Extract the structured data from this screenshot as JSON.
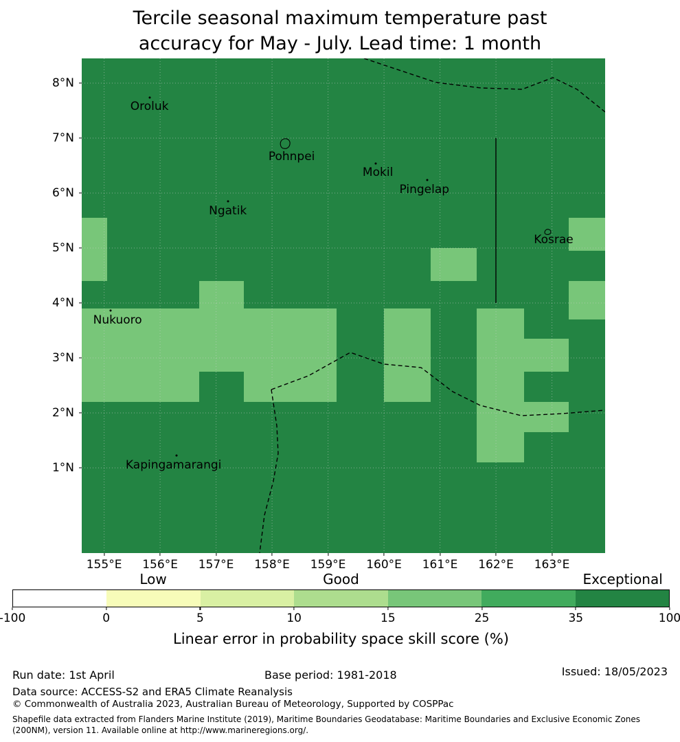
{
  "title": {
    "line1": "Tercile seasonal maximum temperature past",
    "line2": "accuracy for May - July. Lead time: 1 month"
  },
  "chart_data": {
    "type": "heatmap",
    "title": "Tercile seasonal maximum temperature past accuracy for May - July. Lead time: 1 month",
    "value_name": "Linear error in probability space skill score (%)",
    "extent": {
      "lon_min": 154.6,
      "lon_max": 163.95,
      "lat_min": -0.55,
      "lat_max": 8.45
    },
    "x_axis": {
      "ticks": [
        {
          "lon": 155,
          "label": "155°E"
        },
        {
          "lon": 156,
          "label": "156°E"
        },
        {
          "lon": 157,
          "label": "157°E"
        },
        {
          "lon": 158,
          "label": "158°E"
        },
        {
          "lon": 159,
          "label": "159°E"
        },
        {
          "lon": 160,
          "label": "160°E"
        },
        {
          "lon": 161,
          "label": "161°E"
        },
        {
          "lon": 162,
          "label": "162°E"
        },
        {
          "lon": 163,
          "label": "163°E"
        }
      ]
    },
    "y_axis": {
      "ticks": [
        {
          "lat": 8,
          "label": "8°N"
        },
        {
          "lat": 7,
          "label": "7°N"
        },
        {
          "lat": 6,
          "label": "6°N"
        },
        {
          "lat": 5,
          "label": "5°N"
        },
        {
          "lat": 4,
          "label": "4°N"
        },
        {
          "lat": 3,
          "label": "3°N"
        },
        {
          "lat": 2,
          "label": "2°N"
        },
        {
          "lat": 1,
          "label": "1°N"
        }
      ]
    },
    "bins": [
      {
        "range": [
          -100,
          0
        ],
        "color": "#ffffff",
        "category": "Low"
      },
      {
        "range": [
          0,
          5
        ],
        "color": "#f7fcb9",
        "category": "Low"
      },
      {
        "range": [
          5,
          10
        ],
        "color": "#d9f0a3",
        "category": ""
      },
      {
        "range": [
          10,
          15
        ],
        "color": "#addd8e",
        "category": "Good"
      },
      {
        "range": [
          15,
          25
        ],
        "color": "#78c679",
        "category": ""
      },
      {
        "range": [
          25,
          35
        ],
        "color": "#41ab5d",
        "category": ""
      },
      {
        "range": [
          35,
          100
        ],
        "color": "#238443",
        "category": "Exceptional"
      }
    ],
    "background_bin": 6,
    "patches": [
      {
        "lon": [
          154.6,
          155.05
        ],
        "lat": [
          4.4,
          5.55
        ],
        "bin": 4
      },
      {
        "lon": [
          156.7,
          157.5
        ],
        "lat": [
          3.9,
          4.4
        ],
        "bin": 4
      },
      {
        "lon": [
          154.6,
          159.15
        ],
        "lat": [
          2.75,
          3.9
        ],
        "bin": 4
      },
      {
        "lon": [
          154.6,
          156.7
        ],
        "lat": [
          2.2,
          2.75
        ],
        "bin": 4
      },
      {
        "lon": [
          157.5,
          159.15
        ],
        "lat": [
          2.2,
          2.75
        ],
        "bin": 4
      },
      {
        "lon": [
          160.0,
          160.83
        ],
        "lat": [
          2.2,
          3.9
        ],
        "bin": 4
      },
      {
        "lon": [
          160.83,
          161.65
        ],
        "lat": [
          4.4,
          5.0
        ],
        "bin": 4
      },
      {
        "lon": [
          161.65,
          162.5
        ],
        "lat": [
          1.1,
          3.9
        ],
        "bin": 4
      },
      {
        "lon": [
          162.5,
          163.3
        ],
        "lat": [
          2.75,
          3.35
        ],
        "bin": 4
      },
      {
        "lon": [
          162.5,
          163.3
        ],
        "lat": [
          1.65,
          2.2
        ],
        "bin": 4
      },
      {
        "lon": [
          163.3,
          163.95
        ],
        "lat": [
          4.95,
          5.55
        ],
        "bin": 4
      },
      {
        "lon": [
          163.3,
          163.95
        ],
        "lat": [
          3.7,
          4.4
        ],
        "bin": 4
      }
    ],
    "islands": [
      {
        "name": "Oroluk",
        "marker": "dot",
        "lon": 155.81,
        "lat": 7.74,
        "label_lon": 155.81,
        "label_lat": 7.57
      },
      {
        "name": "Pohnpei",
        "marker": "outline",
        "lon": 158.22,
        "lat": 6.89,
        "label_lon": 158.35,
        "label_lat": 6.66
      },
      {
        "name": "Mokil",
        "marker": "dot",
        "lon": 159.85,
        "lat": 6.54,
        "label_lon": 159.89,
        "label_lat": 6.38
      },
      {
        "name": "Pingelap",
        "marker": "dot",
        "lon": 160.77,
        "lat": 6.24,
        "label_lon": 160.72,
        "label_lat": 6.06
      },
      {
        "name": "Ngatik",
        "marker": "dot",
        "lon": 157.21,
        "lat": 5.85,
        "label_lon": 157.21,
        "label_lat": 5.68
      },
      {
        "name": "Kosrae",
        "marker": "outline",
        "lon": 162.92,
        "lat": 5.3,
        "label_lon": 163.03,
        "label_lat": 5.15
      },
      {
        "name": "Nukuoro",
        "marker": "dot",
        "lon": 155.12,
        "lat": 3.86,
        "label_lon": 155.24,
        "label_lat": 3.69
      },
      {
        "name": "Kapingamarangi",
        "marker": "dot",
        "lon": 156.29,
        "lat": 1.23,
        "label_lon": 156.24,
        "label_lat": 1.05
      }
    ]
  },
  "colorbar": {
    "category_labels": [
      {
        "text": "Low",
        "segment": 1
      },
      {
        "text": "Good",
        "segment": 3
      },
      {
        "text": "Exceptional",
        "segment": 6
      }
    ],
    "tick_labels": [
      "-100",
      "0",
      "5",
      "10",
      "15",
      "25",
      "35",
      "100"
    ],
    "axis_label": "Linear error in probability space skill score (%)"
  },
  "footer": {
    "run_date": "Run date: 1st April",
    "base_period": "Base period: 1981-2018",
    "issued": "Issued: 18/05/2023",
    "data_source": "Data source: ACCESS-S2 and ERA5 Climate Reanalysis",
    "copyright": "© Commonwealth of Australia 2023, Australian Bureau of Meteorology, Supported by COSPPac",
    "shapefile_line1": "Shapefile data extracted from Flanders Marine Institute (2019), Maritime Boundaries Geodatabase: Maritime Boundaries and Exclusive Economic Zones",
    "shapefile_line2": "(200NM), version 11. Available online at http://www.marineregions.org/."
  }
}
